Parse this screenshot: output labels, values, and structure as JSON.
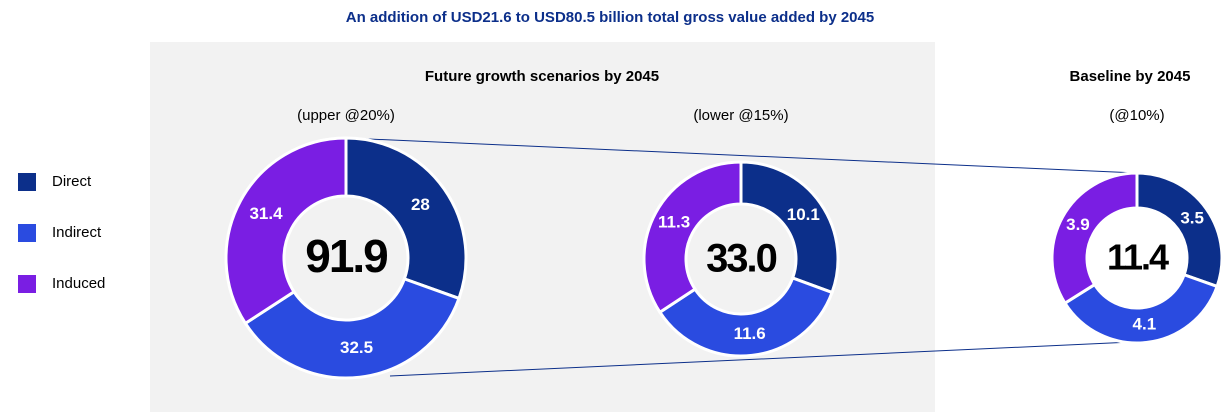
{
  "title": "An addition of USD21.6 to USD80.5 billion total gross value added by 2045",
  "panels": [
    {
      "heading": "Future growth scenarios by 2045"
    },
    {
      "heading": "Baseline by 2045"
    }
  ],
  "chart_data": [
    {
      "type": "donut",
      "title": "(upper @20%)",
      "center_label": "91.9",
      "categories": [
        "Direct",
        "Indirect",
        "Induced"
      ],
      "values": [
        28,
        32.5,
        31.4
      ],
      "colors": [
        "#0c2f8a",
        "#2a4be0",
        "#7a1ee3"
      ]
    },
    {
      "type": "donut",
      "title": "(lower @15%)",
      "center_label": "33.0",
      "categories": [
        "Direct",
        "Indirect",
        "Induced"
      ],
      "values": [
        10.1,
        11.6,
        11.3
      ],
      "colors": [
        "#0c2f8a",
        "#2a4be0",
        "#7a1ee3"
      ]
    },
    {
      "type": "donut",
      "title": "(@10%)",
      "center_label": "11.4",
      "categories": [
        "Direct",
        "Indirect",
        "Induced"
      ],
      "values": [
        3.5,
        4.1,
        3.9
      ],
      "colors": [
        "#0c2f8a",
        "#2a4be0",
        "#7a1ee3"
      ]
    }
  ]
}
